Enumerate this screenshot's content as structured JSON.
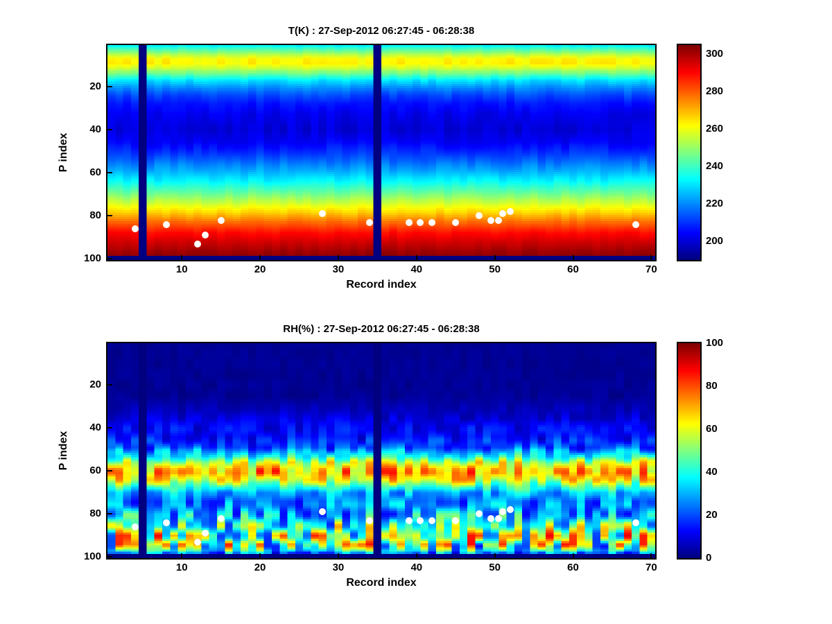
{
  "figure": {
    "background": "#ffffff",
    "marker_color": "#ffffff",
    "axis_color": "#000000"
  },
  "chart_data": [
    {
      "type": "heatmap",
      "id": "temperature",
      "title": "T(K) : 27-Sep-2012 06:27:45 - 06:28:38",
      "xlabel": "Record index",
      "ylabel": "P index",
      "x_ticks": [
        10,
        20,
        30,
        40,
        50,
        60,
        70
      ],
      "y_ticks": [
        20,
        40,
        60,
        80,
        100
      ],
      "x_range": [
        0.5,
        70.5
      ],
      "y_range": [
        0.5,
        100.5
      ],
      "y_axis_reversed": true,
      "n_records": 70,
      "n_levels": 100,
      "colormap": "jet",
      "value_range": [
        190,
        305
      ],
      "colorbar_ticks": [
        200,
        220,
        240,
        260,
        280,
        300
      ],
      "missing_records": [
        5,
        35
      ],
      "bottom_missing_rows": 2,
      "profile": [
        [
          1,
          233
        ],
        [
          3,
          244
        ],
        [
          5,
          254
        ],
        [
          7,
          262
        ],
        [
          9,
          263
        ],
        [
          11,
          257
        ],
        [
          14,
          244
        ],
        [
          17,
          230
        ],
        [
          20,
          221
        ],
        [
          24,
          212
        ],
        [
          28,
          206
        ],
        [
          33,
          202
        ],
        [
          40,
          200
        ],
        [
          46,
          204
        ],
        [
          52,
          212
        ],
        [
          58,
          222
        ],
        [
          63,
          231
        ],
        [
          68,
          242
        ],
        [
          73,
          254
        ],
        [
          78,
          266
        ],
        [
          83,
          279
        ],
        [
          88,
          290
        ],
        [
          93,
          297
        ],
        [
          97,
          302
        ],
        [
          100,
          304
        ]
      ],
      "noise": {
        "seed": 7,
        "row_scale": 8,
        "amp_profile": [
          [
            1,
            2
          ],
          [
            10,
            3
          ],
          [
            30,
            2.5
          ],
          [
            60,
            3
          ],
          [
            80,
            2
          ],
          [
            100,
            1
          ]
        ]
      },
      "points": [
        [
          4,
          86
        ],
        [
          8,
          84
        ],
        [
          12,
          93
        ],
        [
          13,
          89
        ],
        [
          15,
          82
        ],
        [
          28,
          79
        ],
        [
          34,
          83
        ],
        [
          39,
          83
        ],
        [
          40.5,
          83
        ],
        [
          42,
          83
        ],
        [
          45,
          83
        ],
        [
          48,
          80
        ],
        [
          49.5,
          82
        ],
        [
          50.5,
          82
        ],
        [
          51,
          79
        ],
        [
          52,
          78
        ],
        [
          68,
          84
        ]
      ]
    },
    {
      "type": "heatmap",
      "id": "relative-humidity",
      "title": "RH(%) : 27-Sep-2012 06:27:45 - 06:28:38",
      "xlabel": "Record index",
      "ylabel": "P index",
      "x_ticks": [
        10,
        20,
        30,
        40,
        50,
        60,
        70
      ],
      "y_ticks": [
        20,
        40,
        60,
        80,
        100
      ],
      "x_range": [
        0.5,
        70.5
      ],
      "y_range": [
        0.5,
        100.5
      ],
      "y_axis_reversed": true,
      "n_records": 70,
      "n_levels": 100,
      "colormap": "jet",
      "value_range": [
        0,
        100
      ],
      "colorbar_ticks": [
        0,
        20,
        40,
        60,
        80,
        100
      ],
      "missing_records": [
        5,
        35
      ],
      "bottom_missing_rows": 2,
      "profile": [
        [
          1,
          2
        ],
        [
          25,
          2
        ],
        [
          32,
          6
        ],
        [
          38,
          11
        ],
        [
          44,
          13
        ],
        [
          49,
          20
        ],
        [
          53,
          38
        ],
        [
          56,
          58
        ],
        [
          59,
          70
        ],
        [
          61,
          72
        ],
        [
          64,
          62
        ],
        [
          67,
          46
        ],
        [
          70,
          32
        ],
        [
          74,
          25
        ],
        [
          78,
          28
        ],
        [
          82,
          34
        ],
        [
          86,
          44
        ],
        [
          90,
          55
        ],
        [
          94,
          52
        ],
        [
          97,
          38
        ],
        [
          100,
          2
        ]
      ],
      "noise": {
        "seed": 13,
        "row_scale": 5,
        "amp_profile": [
          [
            1,
            1
          ],
          [
            30,
            2
          ],
          [
            36,
            5
          ],
          [
            44,
            8
          ],
          [
            50,
            14
          ],
          [
            55,
            16
          ],
          [
            60,
            17
          ],
          [
            65,
            16
          ],
          [
            70,
            12
          ],
          [
            75,
            14
          ],
          [
            80,
            20
          ],
          [
            85,
            28
          ],
          [
            88,
            36
          ],
          [
            94,
            40
          ],
          [
            98,
            20
          ],
          [
            100,
            2
          ]
        ]
      },
      "points": [
        [
          4,
          86
        ],
        [
          8,
          84
        ],
        [
          12,
          93
        ],
        [
          13,
          89
        ],
        [
          15,
          82
        ],
        [
          28,
          79
        ],
        [
          34,
          83
        ],
        [
          39,
          83
        ],
        [
          40.5,
          83
        ],
        [
          42,
          83
        ],
        [
          45,
          83
        ],
        [
          48,
          80
        ],
        [
          49.5,
          82
        ],
        [
          50.5,
          82
        ],
        [
          51,
          79
        ],
        [
          52,
          78
        ],
        [
          68,
          84
        ]
      ]
    }
  ]
}
